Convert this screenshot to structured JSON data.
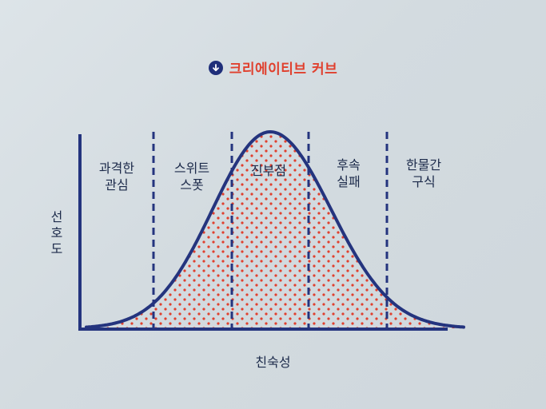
{
  "title": "크리에이티브 커브",
  "title_icon": "down-arrow-circle-icon",
  "y_axis_label": "선호도",
  "x_axis_label": "친숙성",
  "stages": [
    {
      "label": "과격한\n관심"
    },
    {
      "label": "스위트\n스폿"
    },
    {
      "label": "진부점"
    },
    {
      "label": "후속\n실패"
    },
    {
      "label": "한물간\n구식"
    }
  ],
  "colors": {
    "curve": "#24347e",
    "dots": "#e0402e",
    "title": "#e0402e",
    "icon_bg": "#1f2f7a",
    "text": "#1c2a4a"
  }
}
